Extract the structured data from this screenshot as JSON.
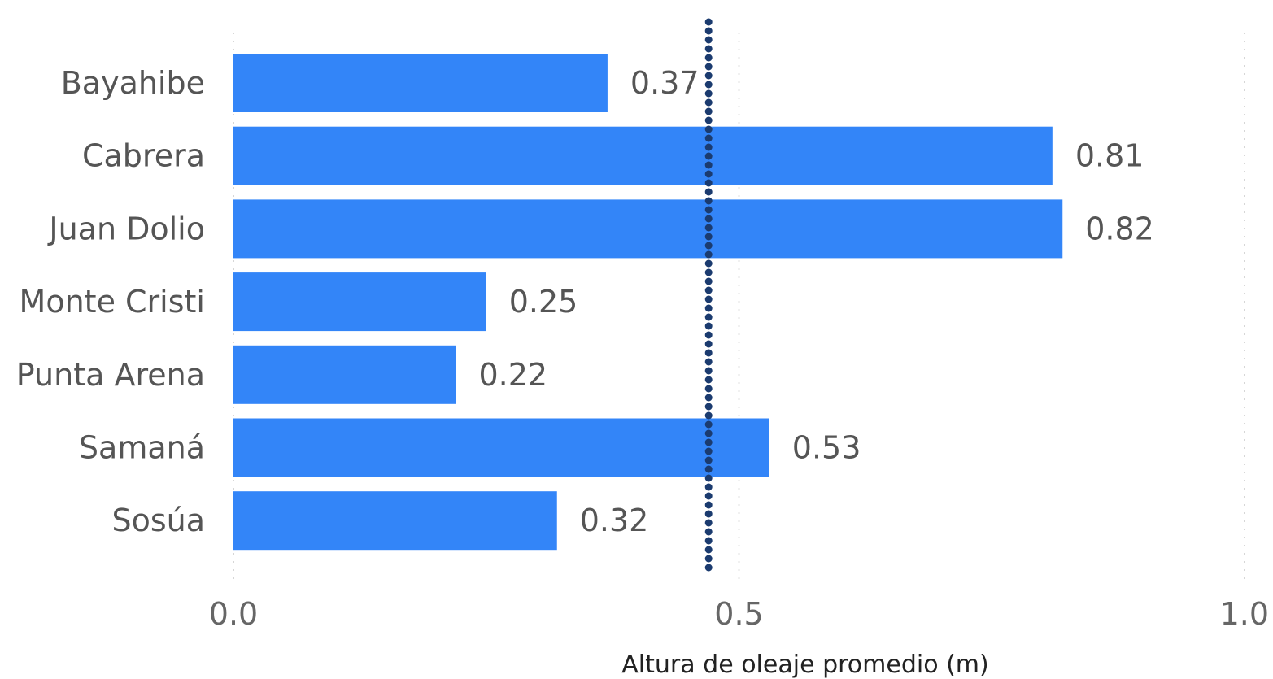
{
  "chart_data": {
    "type": "bar",
    "orientation": "horizontal",
    "categories": [
      "Bayahibe",
      "Cabrera",
      "Juan Dolio",
      "Monte Cristi",
      "Punta Arena",
      "Samaná",
      "Sosúa"
    ],
    "values": [
      0.37,
      0.81,
      0.82,
      0.25,
      0.22,
      0.53,
      0.32
    ],
    "value_labels": [
      "0.37",
      "0.81",
      "0.82",
      "0.25",
      "0.22",
      "0.53",
      "0.32"
    ],
    "xlabel": "Altura de oleaje promedio (m)",
    "ylabel": "",
    "title": "",
    "xlim": [
      0,
      1.0
    ],
    "x_ticks": [
      0,
      0.5,
      1.0
    ],
    "x_tick_labels": [
      "0.0",
      "0.5",
      "1.0"
    ],
    "grid": "vertical dotted",
    "reference_line": {
      "value": 0.47,
      "style": "dotted"
    },
    "bar_color": "#3385F8",
    "reference_line_color": "#1B3B6F"
  }
}
